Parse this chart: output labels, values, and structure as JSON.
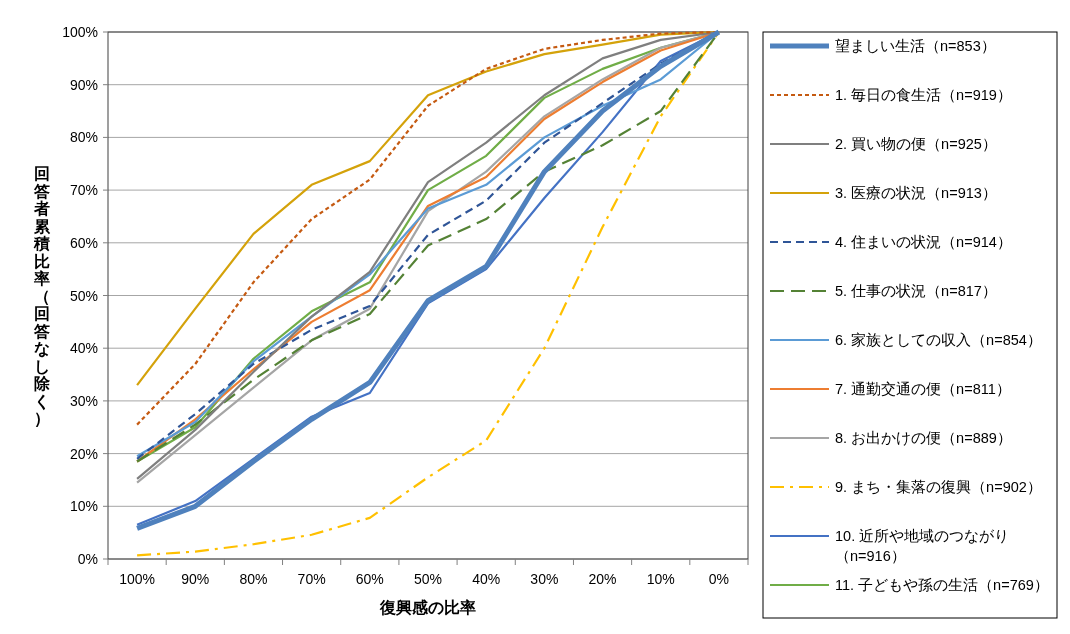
{
  "chart_data": {
    "type": "line",
    "xlabel": "復興感の比率",
    "ylabel": "回答者累積比率（回答なし除く）",
    "categories": [
      "100%",
      "90%",
      "80%",
      "70%",
      "60%",
      "50%",
      "40%",
      "30%",
      "20%",
      "10%",
      "0%"
    ],
    "ylim": [
      0,
      100
    ],
    "yticks": [
      {
        "value": 0,
        "label": "0%"
      },
      {
        "value": 10,
        "label": "10%"
      },
      {
        "value": 20,
        "label": "20%"
      },
      {
        "value": 30,
        "label": "30%"
      },
      {
        "value": 40,
        "label": "40%"
      },
      {
        "value": 50,
        "label": "50%"
      },
      {
        "value": 60,
        "label": "60%"
      },
      {
        "value": 70,
        "label": "70%"
      },
      {
        "value": 80,
        "label": "80%"
      },
      {
        "value": 90,
        "label": "90%"
      },
      {
        "value": 100,
        "label": "100%"
      }
    ],
    "grid": "y",
    "legend": "right",
    "series": [
      {
        "name": "望ましい生活（n=853）",
        "color": "#4f81bd",
        "line_style": "solid",
        "values": [
          5.8,
          10,
          18.5,
          26.5,
          33.5,
          49,
          55.5,
          73.5,
          85,
          93.5,
          100
        ]
      },
      {
        "name": "1. 毎日の食生活（n=919）",
        "color": "#c55a11",
        "line_style": "dotted",
        "values": [
          25.5,
          37,
          52.5,
          64.5,
          72,
          86,
          93,
          96.8,
          98.5,
          99.7,
          100
        ]
      },
      {
        "name": "2. 買い物の便（n=925）",
        "color": "#7f7f7f",
        "line_style": "solid",
        "values": [
          15.2,
          24.5,
          35.5,
          46,
          54.5,
          71.5,
          79,
          88,
          95,
          98.5,
          100
        ]
      },
      {
        "name": "3. 医療の状況（n=913）",
        "color": "#d4a20a",
        "line_style": "solid",
        "values": [
          33,
          47.5,
          61.7,
          71,
          75.5,
          88,
          92.5,
          95.8,
          97.6,
          99.5,
          100
        ]
      },
      {
        "name": "4. 住まいの状況（n=914）",
        "color": "#2f5597",
        "line_style": "dashed",
        "values": [
          19,
          27.5,
          37,
          43.5,
          48,
          61.5,
          68,
          79,
          86.5,
          94,
          100
        ]
      },
      {
        "name": "5. 仕事の状況（n=817）",
        "color": "#548235",
        "line_style": "longdash",
        "values": [
          18.5,
          25.5,
          34,
          41.5,
          46.5,
          59.5,
          64.5,
          73.5,
          78.5,
          85,
          100
        ]
      },
      {
        "name": "6. 家族としての収入（n=854）",
        "color": "#5b9bd5",
        "line_style": "solid",
        "values": [
          19.5,
          26,
          37.5,
          46,
          54,
          66.5,
          71,
          80,
          86,
          91,
          100
        ]
      },
      {
        "name": "7. 通勤交通の便（n=811）",
        "color": "#ed7d31",
        "line_style": "solid",
        "values": [
          18.5,
          26.5,
          36,
          45,
          51,
          67,
          72.5,
          83.5,
          90.5,
          96.5,
          100
        ]
      },
      {
        "name": "8. お出かけの便（n=889）",
        "color": "#a5a5a5",
        "line_style": "solid",
        "values": [
          14.5,
          23.5,
          32.5,
          41.5,
          47.5,
          66,
          73.5,
          84,
          91,
          97,
          100
        ]
      },
      {
        "name": "9. まち・集落の復興（n=902）",
        "color": "#ffc000",
        "line_style": "dashdot",
        "values": [
          0.7,
          1.4,
          2.8,
          4.6,
          7.8,
          15.5,
          22.5,
          40,
          63,
          84,
          100
        ]
      },
      {
        "name": "10. 近所や地域のつながり（n=916）",
        "color": "#4472c4",
        "line_style": "solid",
        "values": [
          6.5,
          11,
          19,
          27,
          31.5,
          48.5,
          55,
          68.5,
          81,
          94.5,
          100
        ]
      },
      {
        "name": "11. 子どもや孫の生活（n=769）",
        "color": "#70ad47",
        "line_style": "solid",
        "values": [
          18.5,
          25,
          38,
          47,
          52.5,
          70,
          76.5,
          87.5,
          93,
          97,
          100
        ]
      }
    ]
  }
}
